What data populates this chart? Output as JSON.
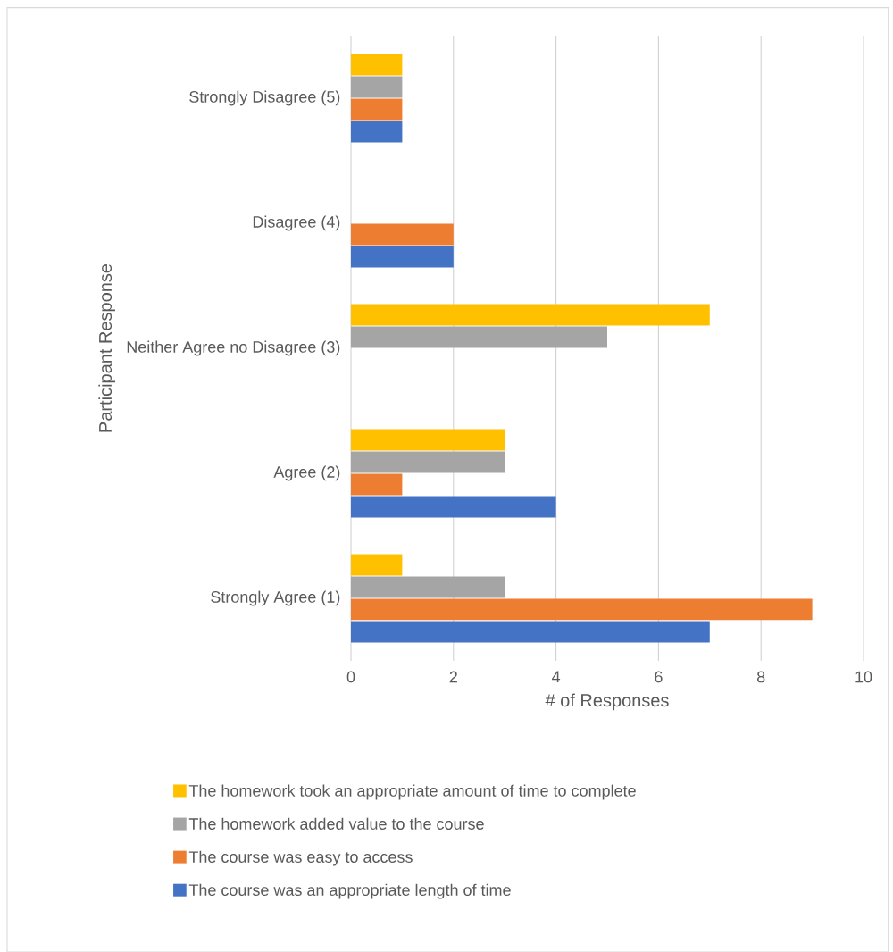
{
  "chart_data": {
    "type": "bar",
    "orientation": "horizontal",
    "xlabel": "# of Responses",
    "ylabel": "Participant Response",
    "categories": [
      "Strongly Disagree (5)",
      "Disagree (4)",
      "Neither Agree no Disagree (3)",
      "Agree (2)",
      "Strongly Agree (1)"
    ],
    "series": [
      {
        "name": "The course was an appropriate length of time",
        "color": "#4472c4",
        "values": [
          1,
          2,
          0,
          4,
          7
        ]
      },
      {
        "name": "The course was easy to access",
        "color": "#ed7d31",
        "values": [
          1,
          2,
          0,
          1,
          9
        ]
      },
      {
        "name": "The homework added value to the course",
        "color": "#a5a5a5",
        "values": [
          1,
          0,
          5,
          3,
          3
        ]
      },
      {
        "name": "The homework took an appropriate amount of time to complete",
        "color": "#ffc000",
        "values": [
          1,
          0,
          7,
          3,
          1
        ]
      }
    ],
    "xlim": [
      0,
      10
    ],
    "xticks": [
      0,
      2,
      4,
      6,
      8,
      10
    ],
    "grid": "x",
    "legend": "bottom"
  }
}
